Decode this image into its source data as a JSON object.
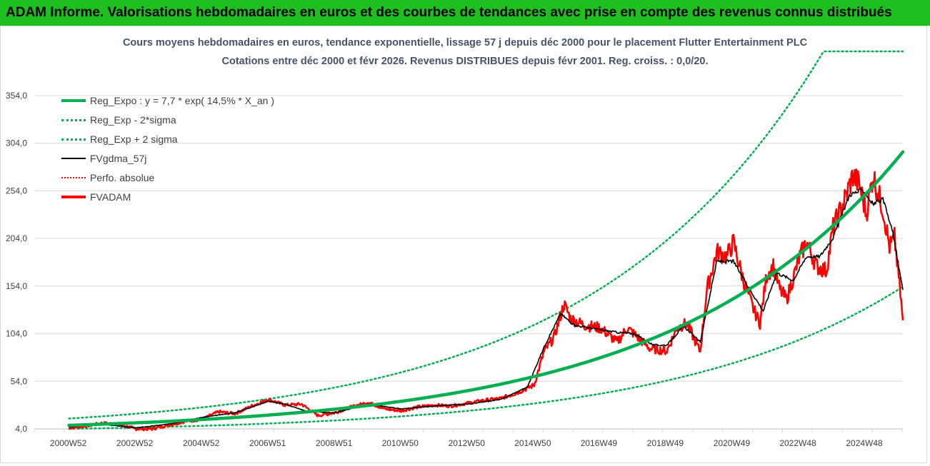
{
  "banner": {
    "title": "ADAM Informe. Valorisations hebdomadaires en euros et des courbes de tendances avec prise en compte des revenus connus distribués"
  },
  "chart_data": {
    "type": "line",
    "title_line1": "Cours moyens hebdomadaires en euros, tendance exponentielle, lissage 57 j depuis déc 2000 pour le placement Flutter Entertainment PLC",
    "title_line2": "Cotations entre déc 2000 et févr 2026. Revenus DISTRIBUES depuis févr 2001. Reg. croiss. : 0,0/20.",
    "yticks": [
      "4,0",
      "54,0",
      "104,0",
      "154,0",
      "204,0",
      "254,0",
      "304,0",
      "354,0"
    ],
    "ytick_values": [
      4,
      54,
      104,
      154,
      204,
      254,
      304,
      354
    ],
    "ylim": [
      4,
      354
    ],
    "xticks": [
      "2000W52",
      "2002W52",
      "2004W52",
      "2006W51",
      "2008W51",
      "2010W50",
      "2012W50",
      "2014W50",
      "2016W49",
      "2018W49",
      "2020W49",
      "2022W48",
      "2024W48"
    ],
    "xtick_years": [
      2000.98,
      2002.98,
      2004.98,
      2006.98,
      2008.98,
      2010.97,
      2012.97,
      2014.96,
      2016.95,
      2018.95,
      2020.95,
      2022.94,
      2024.94
    ],
    "xlim": [
      2000.96,
      2026.12
    ],
    "grid": true,
    "legend_position": "top-left",
    "series": [
      {
        "name": "Reg_Expo : y = 7,7 * exp( 14,5% *  X_an )",
        "color": "#00b050",
        "style": "solid-thick",
        "formula": {
          "a": 7.7,
          "rate": 0.145,
          "x0": 2000.96
        }
      },
      {
        "name": "Reg_Exp - 2*sigma",
        "color": "#00b050",
        "style": "dotted",
        "formula": {
          "factor": 0.52
        }
      },
      {
        "name": "Reg_Exp + 2 sigma",
        "color": "#00b050",
        "style": "dotted",
        "formula": {
          "factor": 1.92,
          "cap": 403
        }
      },
      {
        "name": "FVgdma_57j",
        "color": "#000000",
        "style": "solid"
      },
      {
        "name": "Perfo. absolue",
        "color": "#ff0000",
        "style": "dotted"
      },
      {
        "name": "FVADAM",
        "color": "#ff0000",
        "style": "solid-thick",
        "x": [
          2001.0,
          2001.5,
          2002.0,
          2002.5,
          2003.0,
          2003.5,
          2004.0,
          2004.5,
          2005.0,
          2005.5,
          2006.0,
          2006.5,
          2007.0,
          2007.5,
          2008.0,
          2008.5,
          2009.0,
          2009.5,
          2010.0,
          2010.5,
          2011.0,
          2011.5,
          2012.0,
          2012.5,
          2013.0,
          2013.5,
          2014.0,
          2014.5,
          2015.0,
          2015.3,
          2015.6,
          2015.9,
          2016.1,
          2016.5,
          2017.0,
          2017.5,
          2017.8,
          2018.0,
          2018.5,
          2019.0,
          2019.3,
          2019.6,
          2020.0,
          2020.2,
          2020.5,
          2020.8,
          2021.0,
          2021.3,
          2021.6,
          2021.8,
          2022.0,
          2022.2,
          2022.4,
          2022.6,
          2023.0,
          2023.2,
          2023.5,
          2023.8,
          2024.0,
          2024.3,
          2024.6,
          2024.8,
          2025.0,
          2025.2,
          2025.5,
          2025.7,
          2025.85,
          2026.0,
          2026.1
        ],
        "values": [
          5,
          7,
          10,
          9,
          4,
          4,
          8,
          12,
          14,
          22,
          20,
          28,
          35,
          29,
          30,
          18,
          21,
          27,
          32,
          25,
          23,
          27,
          29,
          28,
          31,
          34,
          36,
          42,
          50,
          85,
          100,
          135,
          120,
          113,
          110,
          95,
          110,
          104,
          88,
          86,
          110,
          115,
          85,
          150,
          190,
          185,
          200,
          160,
          130,
          115,
          165,
          175,
          150,
          140,
          185,
          200,
          175,
          170,
          215,
          240,
          270,
          260,
          230,
          270,
          235,
          195,
          205,
          155,
          118
        ]
      },
      {
        "name": "FVgdma_57j_values",
        "color": "#000000",
        "style": "solid",
        "x": [
          2001.0,
          2002.0,
          2003.0,
          2004.0,
          2005.0,
          2006.0,
          2007.0,
          2007.5,
          2008.2,
          2009.0,
          2010.0,
          2011.0,
          2012.0,
          2013.0,
          2014.0,
          2014.8,
          2015.3,
          2015.8,
          2016.2,
          2017.0,
          2017.6,
          2018.0,
          2018.6,
          2019.0,
          2019.5,
          2020.0,
          2020.5,
          2021.0,
          2021.5,
          2021.9,
          2022.3,
          2022.8,
          2023.2,
          2023.6,
          2024.0,
          2024.5,
          2024.9,
          2025.2,
          2025.5,
          2025.8,
          2026.1
        ],
        "values": [
          6,
          9,
          5,
          9,
          16,
          21,
          33,
          30,
          22,
          21,
          30,
          25,
          28,
          30,
          35,
          48,
          90,
          125,
          113,
          108,
          105,
          104,
          92,
          92,
          112,
          95,
          180,
          180,
          150,
          128,
          168,
          160,
          185,
          185,
          205,
          250,
          255,
          240,
          245,
          210,
          150
        ]
      }
    ]
  }
}
